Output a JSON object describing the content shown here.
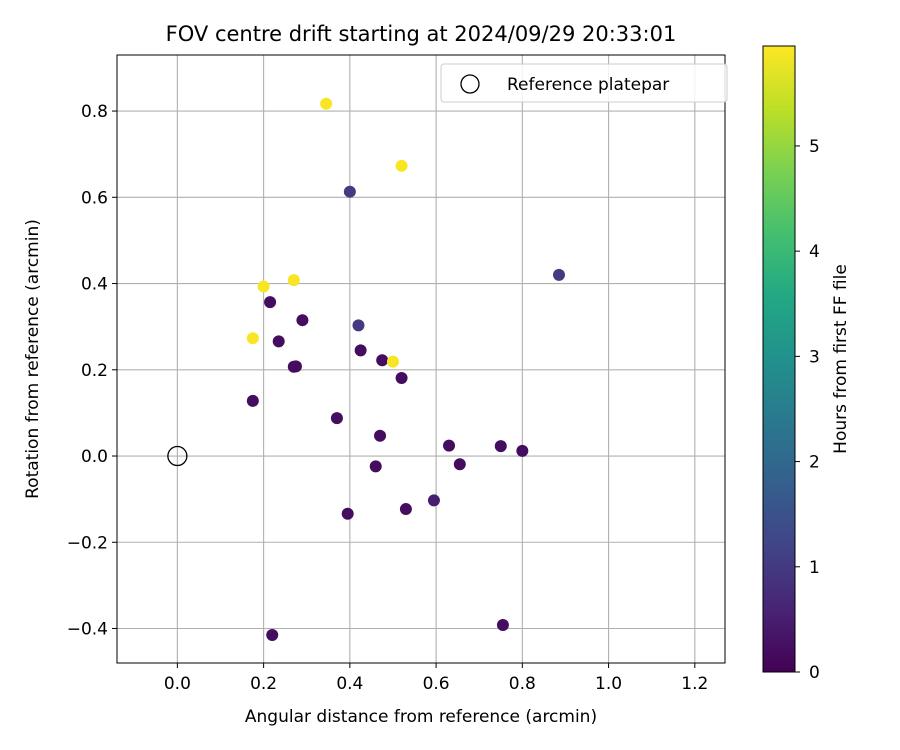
{
  "chart_data": {
    "type": "scatter",
    "title": "FOV centre drift starting at 2024/09/29 20:33:01",
    "xlabel": "Angular distance from reference (arcmin)",
    "ylabel": "Rotation from reference (arcmin)",
    "xlim": [
      -0.14,
      1.27
    ],
    "ylim": [
      -0.48,
      0.93
    ],
    "xticks": [
      0.0,
      0.2,
      0.4,
      0.6,
      0.8,
      1.0,
      1.2
    ],
    "xtick_labels": [
      "0.0",
      "0.2",
      "0.4",
      "0.6",
      "0.8",
      "1.0",
      "1.2"
    ],
    "yticks": [
      -0.4,
      -0.2,
      0.0,
      0.2,
      0.4,
      0.6,
      0.8
    ],
    "ytick_labels": [
      "−0.4",
      "−0.2",
      "0.0",
      "0.2",
      "0.4",
      "0.6",
      "0.8"
    ],
    "grid": true,
    "legend": {
      "placement": "top-right",
      "entries": [
        {
          "label": "Reference platepar",
          "marker": "open-circle"
        }
      ]
    },
    "reference_point": {
      "x": 0.0,
      "y": 0.0
    },
    "colorbar": {
      "label": "Hours from first FF file",
      "colormap": "viridis",
      "range": [
        0,
        5.95
      ],
      "ticks": [
        0,
        1,
        2,
        3,
        4,
        5
      ],
      "tick_labels": [
        "0",
        "1",
        "2",
        "3",
        "4",
        "5"
      ]
    },
    "points": [
      {
        "x": 0.345,
        "y": 0.817,
        "hours": 5.9
      },
      {
        "x": 0.52,
        "y": 0.673,
        "hours": 5.9
      },
      {
        "x": 0.4,
        "y": 0.613,
        "hours": 1.0
      },
      {
        "x": 0.885,
        "y": 0.42,
        "hours": 1.0
      },
      {
        "x": 0.2,
        "y": 0.393,
        "hours": 5.9
      },
      {
        "x": 0.27,
        "y": 0.408,
        "hours": 5.9
      },
      {
        "x": 0.215,
        "y": 0.357,
        "hours": 0.2
      },
      {
        "x": 0.29,
        "y": 0.315,
        "hours": 0.2
      },
      {
        "x": 0.42,
        "y": 0.303,
        "hours": 1.0
      },
      {
        "x": 0.175,
        "y": 0.273,
        "hours": 5.9
      },
      {
        "x": 0.235,
        "y": 0.266,
        "hours": 0.2
      },
      {
        "x": 0.425,
        "y": 0.245,
        "hours": 0.2
      },
      {
        "x": 0.475,
        "y": 0.222,
        "hours": 0.2
      },
      {
        "x": 0.5,
        "y": 0.219,
        "hours": 5.9
      },
      {
        "x": 0.27,
        "y": 0.207,
        "hours": 0.2
      },
      {
        "x": 0.275,
        "y": 0.208,
        "hours": 0.2
      },
      {
        "x": 0.52,
        "y": 0.181,
        "hours": 0.2
      },
      {
        "x": 0.175,
        "y": 0.128,
        "hours": 0.2
      },
      {
        "x": 0.37,
        "y": 0.088,
        "hours": 0.2
      },
      {
        "x": 0.47,
        "y": 0.047,
        "hours": 0.2
      },
      {
        "x": 0.63,
        "y": 0.024,
        "hours": 0.2
      },
      {
        "x": 0.75,
        "y": 0.023,
        "hours": 0.2
      },
      {
        "x": 0.8,
        "y": 0.012,
        "hours": 0.2
      },
      {
        "x": 0.46,
        "y": -0.024,
        "hours": 0.2
      },
      {
        "x": 0.655,
        "y": -0.019,
        "hours": 0.2
      },
      {
        "x": 0.595,
        "y": -0.103,
        "hours": 0.5
      },
      {
        "x": 0.395,
        "y": -0.134,
        "hours": 0.2
      },
      {
        "x": 0.53,
        "y": -0.123,
        "hours": 0.2
      },
      {
        "x": 0.755,
        "y": -0.392,
        "hours": 0.2
      },
      {
        "x": 0.22,
        "y": -0.415,
        "hours": 0.2
      }
    ]
  }
}
